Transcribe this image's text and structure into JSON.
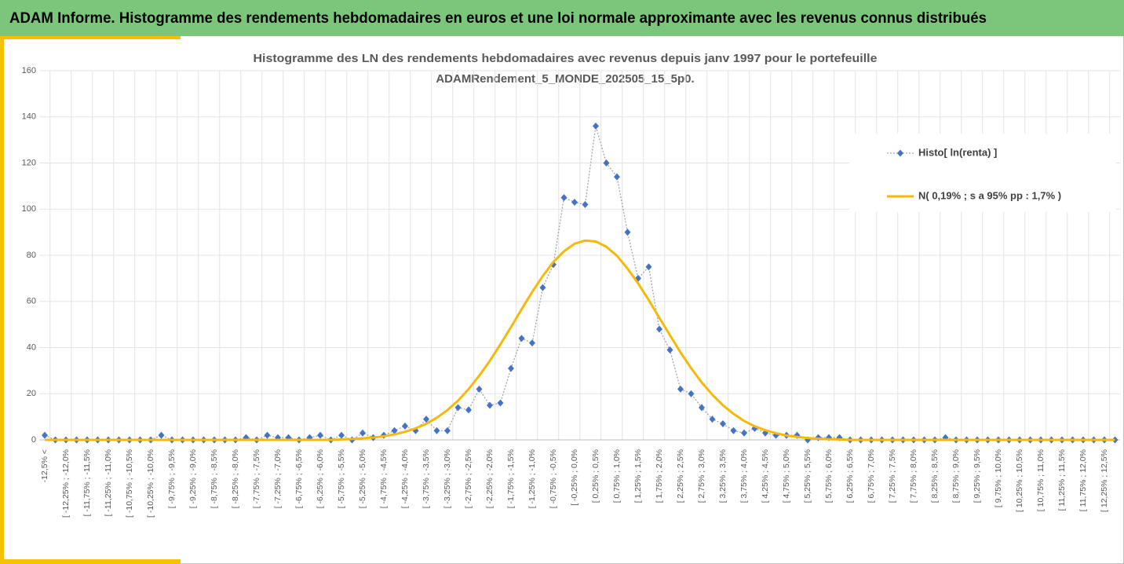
{
  "header": {
    "title": "ADAM Informe. Histogramme des rendements hebdomadaires en euros et une loi normale approximante avec les revenus connus distribués"
  },
  "chart_data": {
    "type": "line",
    "title": [
      "Histogramme des LN des rendements hebdomadaires avec revenus depuis janv 1997 pour le portefeuille",
      "ADAMRendement_5_MONDE_202505_15_5p0."
    ],
    "categories": [
      "-12,5% <",
      null,
      "[ -12,25% ; -12,0%",
      null,
      "[ -11,75% ; -11,5%",
      null,
      "[ -11,25% ; -11,0%",
      null,
      "[ -10,75% ; -10,5%",
      null,
      "[ -10,25% ; -10,0%",
      null,
      "[ -9,75% ; -9,5%",
      null,
      "[ -9,25% ; -9,0%",
      null,
      "[ -8,75% ; -8,5%",
      null,
      "[ -8,25% ; -8,0%",
      null,
      "[ -7,75% ; -7,5%",
      null,
      "[ -7,25% ; -7,0%",
      null,
      "[ -6,75% ; -6,5%",
      null,
      "[ -6,25% ; -6,0%",
      null,
      "[ -5,75% ; -5,5%",
      null,
      "[ -5,25% ; -5,0%",
      null,
      "[ -4,75% ; -4,5%",
      null,
      "[ -4,25% ; -4,0%",
      null,
      "[ -3,75% ; -3,5%",
      null,
      "[ -3,25% ; -3,0%",
      null,
      "[ -2,75% ; -2,5%",
      null,
      "[ -2,25% ; -2,0%",
      null,
      "[ -1,75% ; -1,5%",
      null,
      "[ -1,25% ; -1,0%",
      null,
      "[ -0,75% ; -0,5%",
      null,
      "[ -0,25% ; 0,0%",
      null,
      "[ 0,25% ; 0,5%",
      null,
      "[ 0,75% ; 1,0%",
      null,
      "[ 1,25% ; 1,5%",
      null,
      "[ 1,75% ; 2,0%",
      null,
      "[ 2,25% ; 2,5%",
      null,
      "[ 2,75% ; 3,0%",
      null,
      "[ 3,25% ; 3,5%",
      null,
      "[ 3,75% ; 4,0%",
      null,
      "[ 4,25% ; 4,5%",
      null,
      "[ 4,75% ; 5,0%",
      null,
      "[ 5,25% ; 5,5%",
      null,
      "[ 5,75% ; 6,0%",
      null,
      "[ 6,25% ; 6,5%",
      null,
      "[ 6,75% ; 7,0%",
      null,
      "[ 7,25% ; 7,5%",
      null,
      "[ 7,75% ; 8,0%",
      null,
      "[ 8,25% ; 8,5%",
      null,
      "[ 8,75% ; 9,0%",
      null,
      "[ 9,25% ; 9,5%",
      null,
      "[ 9,75% ; 10,0%",
      null,
      "[ 10,25% ; 10,5%",
      null,
      "[ 10,75% ; 11,0%",
      null,
      "[ 11,25% ; 11,5%",
      null,
      "[ 11,75% ; 12,0%",
      null,
      "[ 12,25% ; 12,5%",
      null
    ],
    "series": [
      {
        "name": "Histo[ ln(renta) ]",
        "color": "#4472c4",
        "line_color": "#a5a5a5",
        "values": [
          2,
          0,
          0,
          0,
          0,
          0,
          0,
          0,
          0,
          0,
          0,
          2,
          0,
          0,
          0,
          0,
          0,
          0,
          0,
          1,
          0,
          2,
          1,
          1,
          0,
          1,
          2,
          0,
          2,
          0,
          3,
          1,
          2,
          4,
          6,
          4,
          9,
          4,
          4,
          14,
          13,
          22,
          15,
          16,
          31,
          44,
          42,
          66,
          76,
          105,
          103,
          102,
          136,
          120,
          114,
          90,
          70,
          75,
          48,
          39,
          22,
          20,
          14,
          9,
          7,
          4,
          3,
          5,
          3,
          2,
          2,
          2,
          0,
          1,
          1,
          1,
          0,
          0,
          0,
          0,
          0,
          0,
          0,
          0,
          0,
          1,
          0,
          0,
          0,
          0,
          0,
          0,
          0,
          0,
          0,
          0,
          0,
          0,
          0,
          0,
          0,
          0
        ]
      },
      {
        "name": "N( 0,19% ; s a 95% pp : 1,7% )",
        "color": "#f5b90a",
        "values": [
          0,
          0,
          0,
          0,
          0,
          0,
          0,
          0,
          0,
          0,
          0,
          0,
          0,
          0,
          0,
          0,
          0,
          0,
          0,
          0,
          0,
          0,
          0,
          0,
          0,
          0,
          0,
          0,
          0.2,
          0.4,
          0.7,
          1.0,
          1.6,
          2.4,
          3.5,
          5.0,
          7.0,
          9.6,
          12.9,
          17.0,
          22.0,
          27.8,
          34.2,
          41.4,
          48.9,
          56.6,
          64.1,
          71.0,
          77.1,
          81.7,
          85.0,
          86.4,
          86.0,
          83.7,
          79.8,
          74.2,
          67.8,
          60.6,
          52.9,
          45.4,
          37.9,
          31.1,
          24.9,
          19.6,
          15.0,
          11.3,
          8.2,
          5.9,
          4.2,
          2.9,
          1.9,
          1.3,
          0.8,
          0.5,
          0.3,
          0.2,
          0,
          0,
          0,
          0,
          0,
          0,
          0,
          0,
          0,
          0,
          0,
          0,
          0,
          0,
          0,
          0,
          0,
          0,
          0,
          0,
          0,
          0,
          0,
          0,
          0,
          0
        ]
      }
    ],
    "ylim": [
      0,
      160
    ],
    "yticks": [
      0,
      20,
      40,
      60,
      80,
      100,
      120,
      140,
      160
    ],
    "grid": true,
    "legend": "right"
  }
}
